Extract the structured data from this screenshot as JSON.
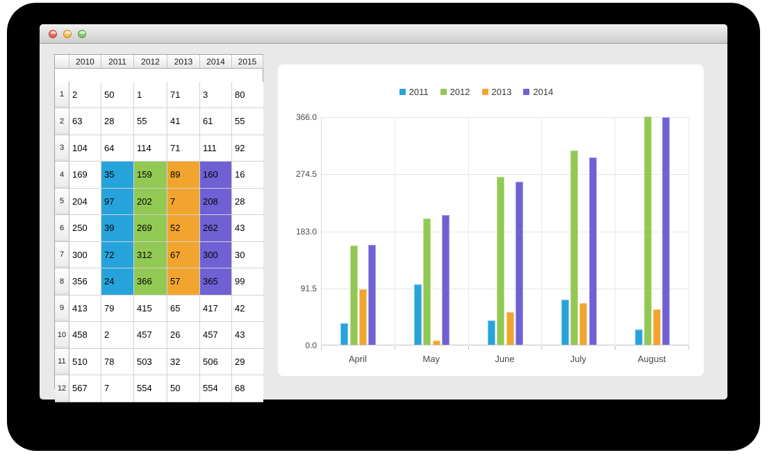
{
  "window": {
    "title": "",
    "controls": {
      "close": "close",
      "minimize": "minimize",
      "zoom": "zoom"
    }
  },
  "table": {
    "columns": [
      "2010",
      "2011",
      "2012",
      "2013",
      "2014",
      "2015"
    ],
    "row_headers": [
      "1",
      "2",
      "3",
      "4",
      "5",
      "6",
      "7",
      "8",
      "9",
      "10",
      "11",
      "12"
    ],
    "rows": [
      [
        2,
        50,
        1,
        71,
        3,
        80
      ],
      [
        63,
        28,
        55,
        41,
        61,
        55
      ],
      [
        104,
        64,
        114,
        71,
        111,
        92
      ],
      [
        169,
        35,
        159,
        89,
        160,
        16
      ],
      [
        204,
        97,
        202,
        7,
        208,
        28
      ],
      [
        250,
        39,
        269,
        52,
        262,
        43
      ],
      [
        300,
        72,
        312,
        67,
        300,
        30
      ],
      [
        356,
        24,
        366,
        57,
        365,
        99
      ],
      [
        413,
        79,
        415,
        65,
        417,
        42
      ],
      [
        458,
        2,
        457,
        26,
        457,
        43
      ],
      [
        510,
        78,
        503,
        32,
        506,
        29
      ],
      [
        567,
        7,
        554,
        50,
        554,
        68
      ]
    ],
    "highlight": {
      "row_start": 4,
      "row_end": 8,
      "columns": {
        "2011": "#27a3dc",
        "2012": "#92c854",
        "2013": "#f2a52e",
        "2014": "#6f61d4"
      }
    }
  },
  "chart_data": {
    "type": "bar",
    "categories": [
      "April",
      "May",
      "June",
      "July",
      "August"
    ],
    "series": [
      {
        "name": "2011",
        "color": "#27a3dc",
        "values": [
          35,
          97,
          39,
          72,
          24
        ]
      },
      {
        "name": "2012",
        "color": "#92c854",
        "values": [
          159,
          202,
          269,
          312,
          366
        ]
      },
      {
        "name": "2013",
        "color": "#f2a52e",
        "values": [
          89,
          7,
          52,
          67,
          57
        ]
      },
      {
        "name": "2014",
        "color": "#6f61d4",
        "values": [
          160,
          208,
          262,
          300,
          365
        ]
      }
    ],
    "yticks": [
      "366.0",
      "274.5",
      "183.0",
      "91.5",
      "0.0"
    ],
    "ylim": [
      0,
      366
    ],
    "title": "",
    "xlabel": "",
    "ylabel": "",
    "grid": true,
    "legend_position": "top"
  }
}
